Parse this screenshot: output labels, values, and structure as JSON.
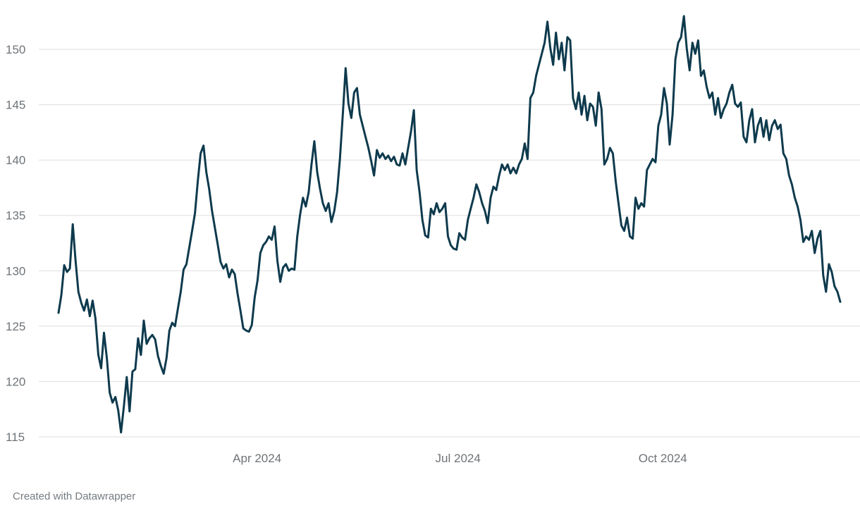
{
  "footer": {
    "attribution": "Created with Datawrapper"
  },
  "chart_data": {
    "type": "line",
    "title": "",
    "x_axis": {
      "tick_labels": [
        "Apr 2024",
        "Jul 2024",
        "Oct 2024"
      ],
      "tick_positions": [
        0.254,
        0.511,
        0.773
      ]
    },
    "y_axis": {
      "ticks": [
        115,
        120,
        125,
        130,
        135,
        140,
        145,
        150
      ],
      "min": 115,
      "max": 153.5,
      "grid": true
    },
    "legend": "none",
    "style": {
      "line_color": "#0e3a4d",
      "grid_color": "#dddddd",
      "label_color": "#6e7377",
      "footer_color": "#767b80",
      "background": "#ffffff"
    },
    "series": [
      {
        "name": "value",
        "values": [
          126.2,
          127.8,
          130.5,
          129.9,
          130.2,
          134.2,
          130.9,
          128.1,
          127.1,
          126.4,
          127.4,
          125.9,
          127.3,
          125.7,
          122.4,
          121.2,
          124.4,
          122.1,
          119.0,
          118.1,
          118.6,
          117.4,
          115.4,
          117.8,
          120.4,
          117.3,
          120.9,
          121.1,
          123.9,
          122.4,
          125.5,
          123.4,
          123.9,
          124.2,
          123.8,
          122.3,
          121.4,
          120.7,
          122.1,
          124.6,
          125.3,
          125.0,
          126.6,
          128.1,
          130.1,
          130.6,
          132.1,
          133.6,
          135.2,
          138.1,
          140.6,
          141.3,
          138.9,
          137.4,
          135.4,
          133.9,
          132.4,
          130.8,
          130.2,
          130.6,
          129.4,
          130.1,
          129.7,
          127.9,
          126.4,
          124.8,
          124.6,
          124.5,
          125.1,
          127.6,
          129.1,
          131.6,
          132.3,
          132.6,
          133.1,
          132.8,
          134.0,
          130.9,
          129.0,
          130.3,
          130.6,
          130.0,
          130.2,
          130.1,
          133.1,
          135.1,
          136.6,
          135.8,
          137.1,
          139.6,
          141.7,
          138.9,
          137.4,
          136.1,
          135.4,
          136.1,
          134.4,
          135.4,
          137.1,
          140.1,
          144.1,
          148.3,
          145.1,
          143.8,
          146.1,
          146.5,
          144.1,
          143.1,
          142.1,
          141.1,
          139.9,
          138.6,
          140.9,
          140.2,
          140.6,
          140.1,
          140.4,
          139.9,
          140.3,
          139.6,
          139.5,
          140.6,
          139.6,
          141.1,
          142.6,
          144.5,
          139.1,
          137.1,
          134.6,
          133.2,
          133.0,
          135.6,
          135.1,
          136.1,
          135.3,
          135.6,
          136.1,
          133.1,
          132.3,
          132.0,
          131.9,
          133.4,
          133.0,
          132.8,
          134.6,
          135.6,
          136.6,
          137.8,
          137.1,
          136.1,
          135.4,
          134.3,
          136.6,
          137.6,
          137.3,
          138.6,
          139.6,
          139.1,
          139.6,
          138.8,
          139.3,
          138.8,
          139.6,
          140.1,
          141.5,
          140.1,
          145.6,
          146.1,
          147.6,
          148.6,
          149.6,
          150.6,
          152.5,
          150.1,
          148.6,
          151.5,
          149.1,
          150.6,
          148.1,
          151.1,
          150.8,
          145.6,
          144.6,
          146.1,
          144.1,
          145.8,
          143.6,
          145.1,
          144.8,
          143.1,
          146.1,
          144.6,
          139.6,
          140.1,
          141.1,
          140.6,
          138.1,
          136.1,
          134.1,
          133.6,
          134.8,
          133.1,
          132.9,
          136.6,
          135.6,
          136.1,
          135.8,
          139.1,
          139.6,
          140.1,
          139.8,
          143.1,
          144.1,
          146.5,
          145.1,
          141.4,
          144.1,
          149.1,
          150.6,
          151.1,
          153.0,
          150.1,
          148.1,
          150.6,
          149.6,
          150.8,
          147.6,
          148.1,
          146.6,
          145.6,
          146.1,
          144.1,
          145.6,
          143.8,
          144.6,
          145.1,
          146.1,
          146.8,
          145.1,
          144.8,
          145.2,
          142.1,
          141.6,
          143.6,
          144.6,
          141.6,
          143.1,
          143.8,
          142.1,
          143.6,
          141.8,
          143.1,
          143.6,
          142.8,
          143.2,
          140.6,
          140.1,
          138.6,
          137.8,
          136.6,
          135.8,
          134.6,
          132.6,
          133.1,
          132.8,
          133.6,
          131.6,
          132.9,
          133.6,
          129.6,
          128.1,
          130.6,
          129.9,
          128.6,
          128.1,
          127.2
        ]
      }
    ]
  }
}
